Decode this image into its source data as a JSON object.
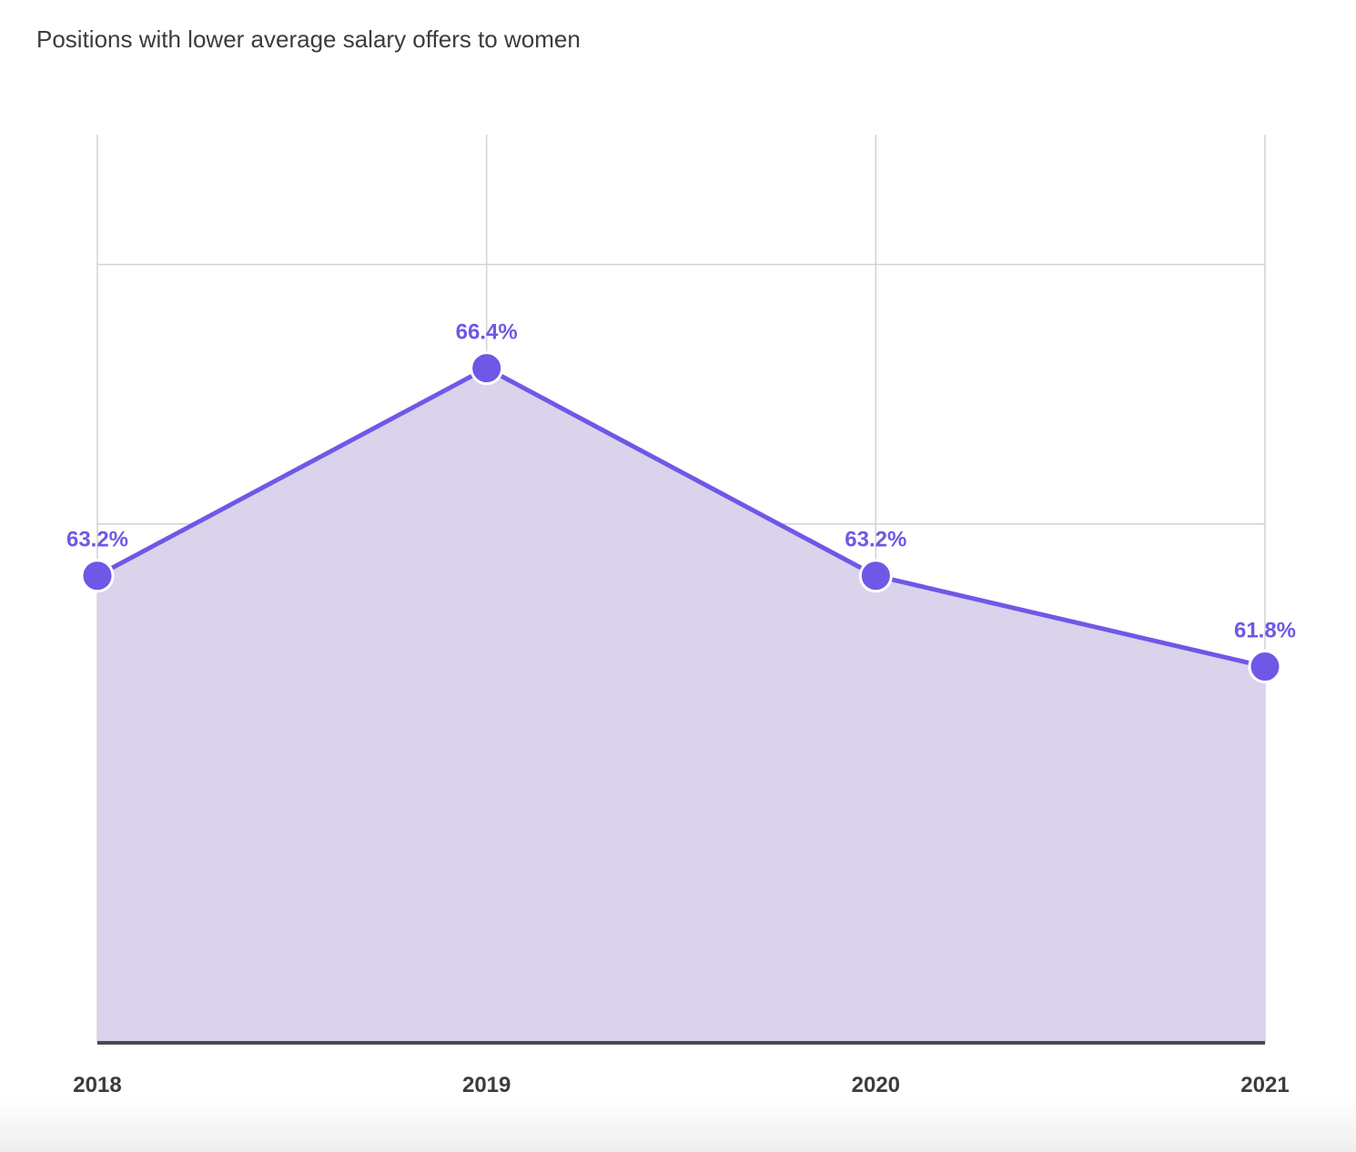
{
  "chart_data": {
    "type": "area",
    "title": "Positions with lower average salary offers to women",
    "categories": [
      "2018",
      "2019",
      "2020",
      "2021"
    ],
    "series": [
      {
        "values": [
          63.2,
          66.4,
          63.2,
          61.8
        ],
        "labels": [
          "63.2%",
          "66.4%",
          "63.2%",
          "61.8%"
        ]
      }
    ],
    "ylim": [
      56,
      70
    ],
    "grid": true,
    "colors": {
      "line": "#6f58e6",
      "fill": "#dbd3ec",
      "grid": "#d2d2d6",
      "tick_text": "#3c3c3c"
    }
  }
}
